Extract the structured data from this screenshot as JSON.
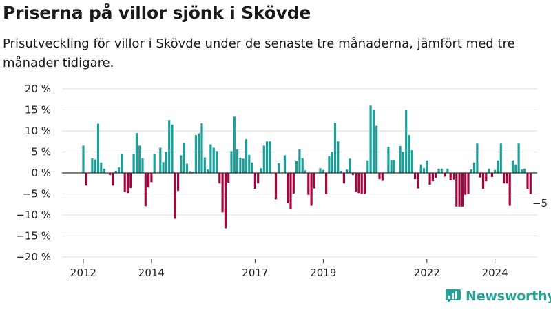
{
  "title": "Priserna på villor sjönk i Skövde",
  "subtitle": "Prisutveckling för villor i Skövde under de senaste tre månaderna, jämfört med tre månader tidigare.",
  "brand": {
    "name": "Newsworthy"
  },
  "colors": {
    "positive": "#1aa098",
    "negative": "#a3063f",
    "grid": "#dddddd",
    "zero": "#333333"
  },
  "chart_data": {
    "type": "bar",
    "ylim": [
      -20,
      20
    ],
    "y_ticks": [
      20,
      15,
      10,
      5,
      0,
      -5,
      -10,
      -15,
      -20
    ],
    "y_tick_labels": [
      "20 %",
      "15 %",
      "10 %",
      "5 %",
      "0 %",
      "−5 %",
      "−10 %",
      "−15 %",
      "−20 %"
    ],
    "x_tick_labels": [
      {
        "label": "2012",
        "index": 0
      },
      {
        "label": "2014",
        "index": 23
      },
      {
        "label": "2017",
        "index": 58
      },
      {
        "label": "2019",
        "index": 81
      },
      {
        "label": "2022",
        "index": 116
      },
      {
        "label": "2024",
        "index": 139
      }
    ],
    "annotation": {
      "text": "−5 %",
      "index": 150
    },
    "values": [
      6.5,
      -3,
      0,
      3.5,
      3.2,
      11.7,
      2.5,
      1,
      0,
      -0.5,
      -3,
      0.5,
      1.3,
      4.5,
      -4.5,
      -4.8,
      -3.6,
      4.5,
      9.5,
      6.5,
      3.5,
      -7.9,
      -3.5,
      -2.2,
      4.5,
      0,
      6,
      2.6,
      5,
      12.6,
      11.5,
      -10.9,
      -4.3,
      4.2,
      7.2,
      2.2,
      0.4,
      0.3,
      9,
      9.4,
      11.8,
      3.7,
      0.8,
      6.8,
      6,
      5.2,
      -2.5,
      -9.4,
      -13.2,
      -2.3,
      5.2,
      13.4,
      5.6,
      3.6,
      3.4,
      8,
      4.3,
      2.5,
      -3.8,
      -2.5,
      1.1,
      6.5,
      7.5,
      7.5,
      0,
      -6.3,
      2.3,
      0,
      4.2,
      -7.2,
      -8.7,
      -4.9,
      2.8,
      5.6,
      3.5,
      0.6,
      -5.2,
      -7.8,
      -3.7,
      0,
      1.1,
      0.7,
      -5.1,
      4,
      5,
      11.9,
      7.5,
      0.5,
      -2.5,
      0.8,
      3.4,
      -0.5,
      -4.5,
      -4.8,
      -5,
      -5,
      3,
      16,
      15,
      11.2,
      -1.5,
      -1.9,
      0,
      6.2,
      3.1,
      3.1,
      0,
      6.4,
      5,
      15,
      9,
      5.4,
      -1.5,
      -3.7,
      2,
      1.1,
      3,
      -2.8,
      -2,
      -1.2,
      1,
      1,
      -0.9,
      1,
      -1.8,
      -1.6,
      -8,
      -8,
      -8,
      -5.2,
      -5,
      0.8,
      2.5,
      7,
      -1.1,
      -3.8,
      -2,
      1,
      -1,
      0.7,
      3,
      7,
      -2.5,
      -2.5,
      -7.8,
      3,
      2,
      7,
      0.8,
      1,
      -3.8,
      -5
    ]
  }
}
